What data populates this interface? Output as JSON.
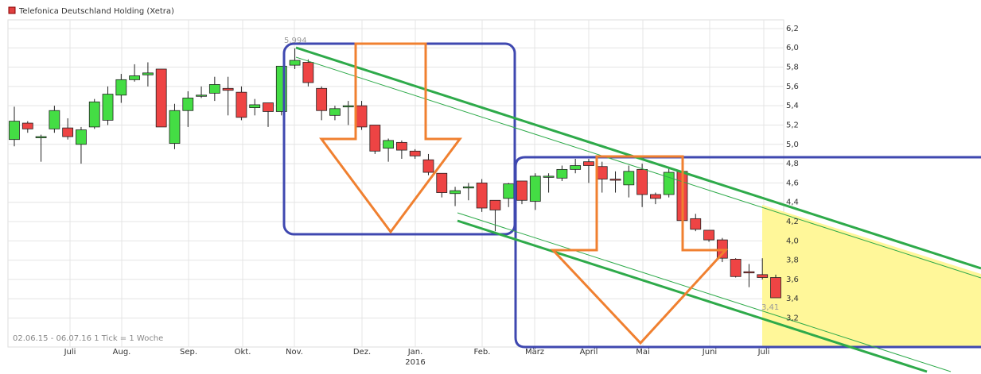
{
  "chart_data": {
    "type": "candlestick",
    "title": "Telefonica Deutschland Holding (Xetra)",
    "footnote": "02.06.15 - 06.07.16   1 Tick = 1 Woche",
    "x_labels": [
      "Juli",
      "Aug.",
      "Sep.",
      "Okt.",
      "Nov.",
      "Dez.",
      "Jan.",
      "Feb.",
      "März",
      "April",
      "Mai",
      "Juni",
      "Juli"
    ],
    "x_sublabel": "2016",
    "annotations": [
      "5,994",
      "3,41"
    ],
    "up_color": "#44dd44",
    "down_color": "#ee4444",
    "grid": true,
    "ylim": [
      2.9,
      6.29
    ],
    "yticks": [
      {
        "value": 3.2,
        "label": "3,2"
      },
      {
        "value": 3.4,
        "label": "3,4"
      },
      {
        "value": 3.6,
        "label": "3,6"
      },
      {
        "value": 3.8,
        "label": "3,8"
      },
      {
        "value": 4.0,
        "label": "4,0"
      },
      {
        "value": 4.2,
        "label": "4,2"
      },
      {
        "value": 4.4,
        "label": "4,4"
      },
      {
        "value": 4.6,
        "label": "4,6"
      },
      {
        "value": 4.8,
        "label": "4,8"
      },
      {
        "value": 5.0,
        "label": "5,0"
      },
      {
        "value": 5.2,
        "label": "5,2"
      },
      {
        "value": 5.4,
        "label": "5,4"
      },
      {
        "value": 5.6,
        "label": "5,6"
      },
      {
        "value": 5.8,
        "label": "5,8"
      },
      {
        "value": 6.0,
        "label": "6,0"
      },
      {
        "value": 6.2,
        "label": "6,2"
      }
    ],
    "open": [
      5.05,
      5.22,
      5.07,
      5.16,
      5.17,
      5.0,
      5.18,
      5.25,
      5.51,
      5.67,
      5.72,
      5.78,
      5.01,
      5.35,
      5.5,
      5.53,
      5.58,
      5.54,
      5.38,
      5.43,
      5.34,
      5.82,
      5.85,
      5.58,
      5.3,
      5.39,
      5.4,
      5.2,
      4.96,
      5.02,
      4.93,
      4.84,
      4.7,
      4.49,
      4.55,
      4.6,
      4.42,
      4.44,
      4.62,
      4.41,
      4.66,
      4.65,
      4.74,
      4.82,
      4.77,
      4.64,
      4.58,
      4.74,
      4.48,
      4.48,
      4.72,
      4.23,
      4.11,
      4.01,
      3.81,
      3.68,
      3.65,
      3.62
    ],
    "high": [
      5.39,
      5.24,
      5.1,
      5.4,
      5.27,
      5.18,
      5.47,
      5.6,
      5.73,
      5.83,
      5.85,
      5.78,
      5.42,
      5.55,
      5.6,
      5.7,
      5.7,
      5.6,
      5.47,
      5.43,
      5.81,
      5.994,
      5.88,
      5.6,
      5.4,
      5.45,
      5.45,
      5.2,
      5.06,
      5.04,
      4.95,
      4.9,
      4.7,
      4.56,
      4.6,
      4.64,
      4.42,
      4.6,
      4.62,
      4.7,
      4.7,
      4.78,
      4.85,
      4.85,
      4.82,
      4.72,
      4.78,
      4.8,
      4.5,
      4.75,
      4.72,
      4.28,
      4.11,
      4.03,
      3.82,
      3.76,
      3.82,
      3.65
    ],
    "low": [
      4.98,
      5.12,
      4.82,
      5.12,
      5.05,
      4.8,
      5.16,
      5.2,
      5.43,
      5.65,
      5.6,
      5.18,
      4.95,
      5.18,
      5.48,
      5.45,
      5.3,
      5.25,
      5.3,
      5.18,
      5.3,
      5.78,
      5.6,
      5.25,
      5.25,
      5.2,
      5.15,
      4.9,
      4.82,
      4.85,
      4.85,
      4.68,
      4.45,
      4.36,
      4.42,
      4.3,
      4.1,
      4.35,
      4.38,
      4.32,
      4.5,
      4.62,
      4.7,
      4.6,
      4.5,
      4.5,
      4.45,
      4.35,
      4.38,
      4.45,
      4.2,
      4.1,
      3.99,
      3.78,
      3.62,
      3.52,
      3.6,
      3.41
    ],
    "close": [
      5.24,
      5.16,
      5.08,
      5.35,
      5.08,
      5.15,
      5.44,
      5.52,
      5.67,
      5.71,
      5.74,
      5.18,
      5.35,
      5.48,
      5.51,
      5.62,
      5.56,
      5.28,
      5.41,
      5.34,
      5.81,
      5.87,
      5.64,
      5.35,
      5.37,
      5.4,
      5.18,
      4.93,
      5.04,
      4.94,
      4.88,
      4.71,
      4.5,
      4.52,
      4.56,
      4.34,
      4.32,
      4.59,
      4.42,
      4.67,
      4.67,
      4.74,
      4.78,
      4.78,
      4.64,
      4.63,
      4.72,
      4.48,
      4.44,
      4.71,
      4.21,
      4.12,
      4.01,
      3.82,
      3.63,
      3.67,
      3.62,
      3.41
    ]
  }
}
